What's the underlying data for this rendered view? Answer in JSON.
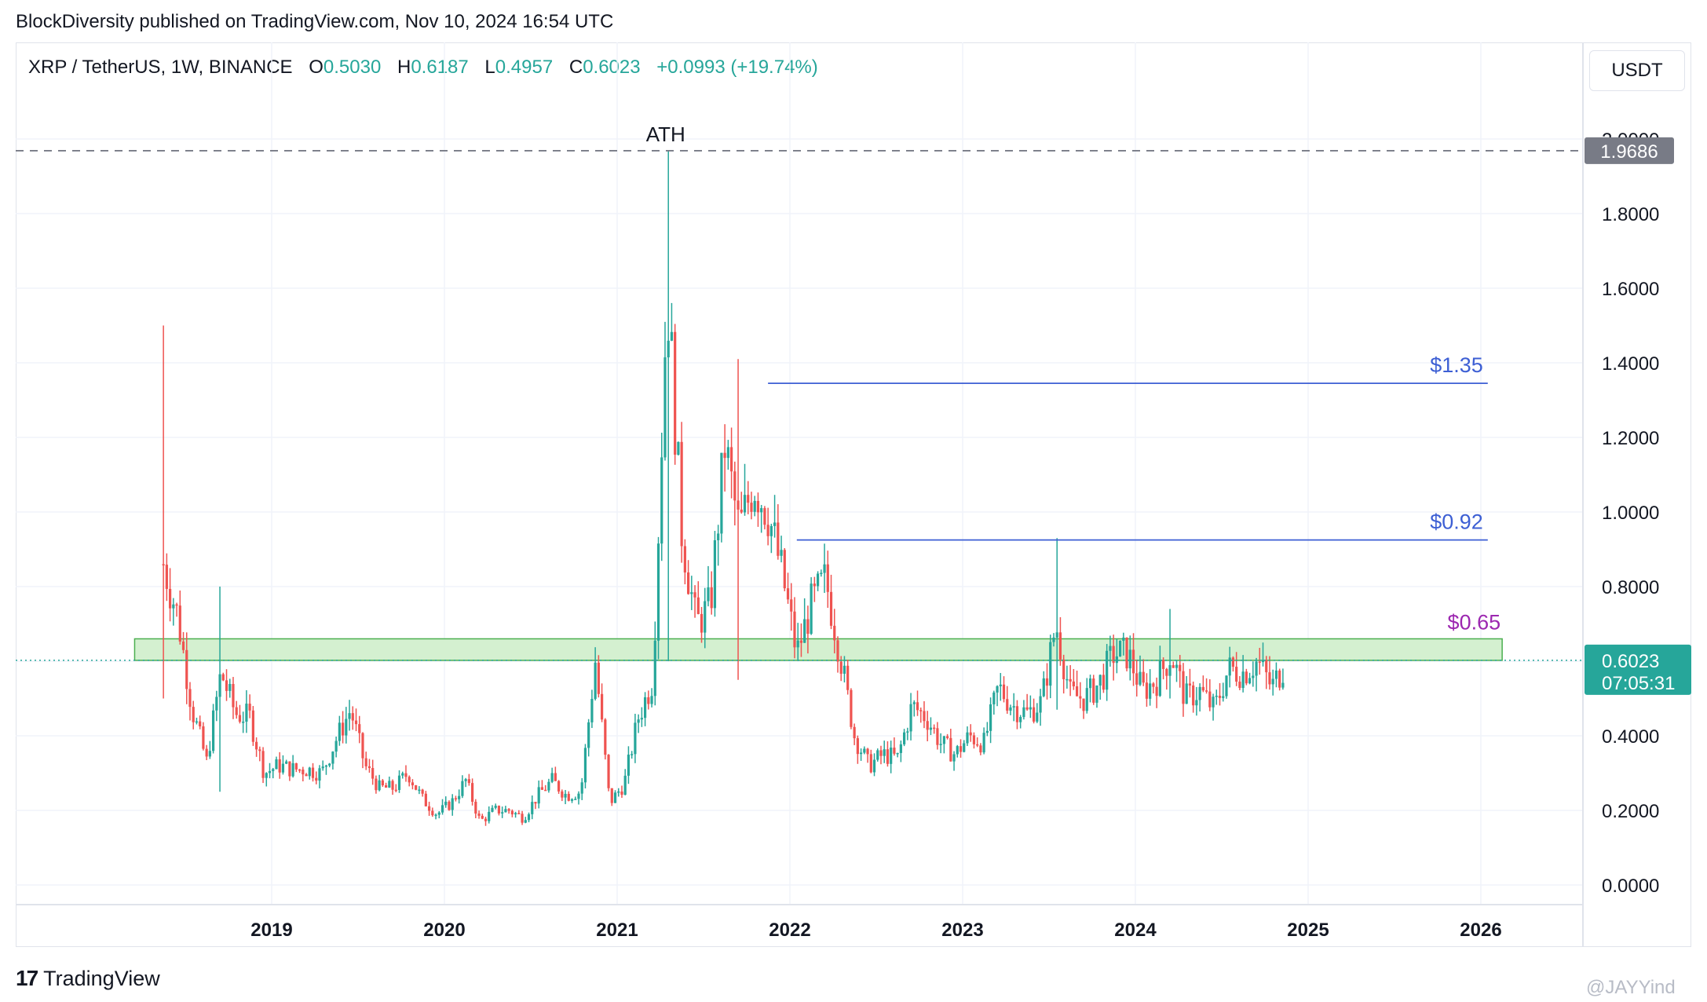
{
  "header": {
    "publisher_line": "BlockDiversity published on TradingView.com, Nov 10, 2024 16:54 UTC"
  },
  "legend": {
    "symbol": "XRP / TetherUS, 1W, BINANCE",
    "o_label": "O",
    "o_value": "0.5030",
    "h_label": "H",
    "h_value": "0.6187",
    "l_label": "L",
    "l_value": "0.4957",
    "c_label": "C",
    "c_value": "0.6023",
    "change": "+0.0993 (+19.74%)"
  },
  "currency_button": "USDT",
  "footer": {
    "brand": "TradingView",
    "watermark": "@JAYYind"
  },
  "colors": {
    "up": "#26a69a",
    "down": "#ef5350",
    "resistance": "#3d5fd4",
    "support_label": "#9c27b0",
    "zone_fill": "#d4f0d0",
    "zone_stroke": "#4caf50"
  },
  "chart_data": {
    "type": "candlestick",
    "symbol": "XRP / TetherUS",
    "interval": "1W",
    "exchange": "BINANCE",
    "ylim": [
      0,
      2.0
    ],
    "yticks": [
      "0.0000",
      "0.2000",
      "0.4000",
      "0.6000",
      "0.8000",
      "1.0000",
      "1.2000",
      "1.4000",
      "1.6000",
      "1.8000",
      "2.0000"
    ],
    "xticks": [
      "2019",
      "2020",
      "2021",
      "2022",
      "2023",
      "2024",
      "2025",
      "2026"
    ],
    "grid": true,
    "series": [
      {
        "x": "2018-05",
        "y": 0.86
      },
      {
        "x": "2018-06",
        "y": 0.72
      },
      {
        "x": "2018-07",
        "y": 0.47
      },
      {
        "x": "2018-08",
        "y": 0.33
      },
      {
        "x": "2018-09",
        "y": 0.57
      },
      {
        "x": "2018-10",
        "y": 0.46
      },
      {
        "x": "2018-11",
        "y": 0.45
      },
      {
        "x": "2018-12",
        "y": 0.3
      },
      {
        "x": "2019-01",
        "y": 0.32
      },
      {
        "x": "2019-02",
        "y": 0.31
      },
      {
        "x": "2019-03",
        "y": 0.31
      },
      {
        "x": "2019-04",
        "y": 0.3
      },
      {
        "x": "2019-05",
        "y": 0.39
      },
      {
        "x": "2019-06",
        "y": 0.47
      },
      {
        "x": "2019-07",
        "y": 0.32
      },
      {
        "x": "2019-08",
        "y": 0.26
      },
      {
        "x": "2019-09",
        "y": 0.26
      },
      {
        "x": "2019-10",
        "y": 0.3
      },
      {
        "x": "2019-11",
        "y": 0.23
      },
      {
        "x": "2019-12",
        "y": 0.19
      },
      {
        "x": "2020-01",
        "y": 0.22
      },
      {
        "x": "2020-02",
        "y": 0.28
      },
      {
        "x": "2020-03",
        "y": 0.17
      },
      {
        "x": "2020-04",
        "y": 0.2
      },
      {
        "x": "2020-05",
        "y": 0.2
      },
      {
        "x": "2020-06",
        "y": 0.18
      },
      {
        "x": "2020-07",
        "y": 0.24
      },
      {
        "x": "2020-08",
        "y": 0.28
      },
      {
        "x": "2020-09",
        "y": 0.24
      },
      {
        "x": "2020-10",
        "y": 0.25
      },
      {
        "x": "2020-11",
        "y": 0.6
      },
      {
        "x": "2020-12",
        "y": 0.22
      },
      {
        "x": "2021-01",
        "y": 0.27
      },
      {
        "x": "2021-02",
        "y": 0.45
      },
      {
        "x": "2021-03",
        "y": 0.55
      },
      {
        "x": "2021-04",
        "y": 1.6
      },
      {
        "x": "2021-05",
        "y": 0.95
      },
      {
        "x": "2021-06",
        "y": 0.7
      },
      {
        "x": "2021-07",
        "y": 0.75
      },
      {
        "x": "2021-08",
        "y": 1.18
      },
      {
        "x": "2021-09",
        "y": 0.95
      },
      {
        "x": "2021-10",
        "y": 1.08
      },
      {
        "x": "2021-11",
        "y": 1.0
      },
      {
        "x": "2021-12",
        "y": 0.83
      },
      {
        "x": "2022-01",
        "y": 0.62
      },
      {
        "x": "2022-02",
        "y": 0.75
      },
      {
        "x": "2022-03",
        "y": 0.82
      },
      {
        "x": "2022-04",
        "y": 0.62
      },
      {
        "x": "2022-05",
        "y": 0.4
      },
      {
        "x": "2022-06",
        "y": 0.32
      },
      {
        "x": "2022-07",
        "y": 0.35
      },
      {
        "x": "2022-08",
        "y": 0.34
      },
      {
        "x": "2022-09",
        "y": 0.48
      },
      {
        "x": "2022-10",
        "y": 0.45
      },
      {
        "x": "2022-11",
        "y": 0.38
      },
      {
        "x": "2022-12",
        "y": 0.35
      },
      {
        "x": "2023-01",
        "y": 0.4
      },
      {
        "x": "2023-02",
        "y": 0.38
      },
      {
        "x": "2023-03",
        "y": 0.53
      },
      {
        "x": "2023-04",
        "y": 0.48
      },
      {
        "x": "2023-05",
        "y": 0.46
      },
      {
        "x": "2023-06",
        "y": 0.49
      },
      {
        "x": "2023-07",
        "y": 0.7
      },
      {
        "x": "2023-08",
        "y": 0.51
      },
      {
        "x": "2023-09",
        "y": 0.5
      },
      {
        "x": "2023-10",
        "y": 0.54
      },
      {
        "x": "2023-11",
        "y": 0.62
      },
      {
        "x": "2023-12",
        "y": 0.62
      },
      {
        "x": "2024-01",
        "y": 0.52
      },
      {
        "x": "2024-02",
        "y": 0.55
      },
      {
        "x": "2024-03",
        "y": 0.62
      },
      {
        "x": "2024-04",
        "y": 0.5
      },
      {
        "x": "2024-05",
        "y": 0.52
      },
      {
        "x": "2024-06",
        "y": 0.47
      },
      {
        "x": "2024-07",
        "y": 0.58
      },
      {
        "x": "2024-08",
        "y": 0.57
      },
      {
        "x": "2024-09",
        "y": 0.6
      },
      {
        "x": "2024-10",
        "y": 0.53
      },
      {
        "x": "2024-11",
        "y": 0.6
      }
    ],
    "spikes": [
      {
        "x": "2018-05",
        "high": 1.5,
        "low": 0.5
      },
      {
        "x": "2018-09",
        "high": 0.8,
        "low": 0.25
      },
      {
        "x": "2021-04",
        "high": 1.9686,
        "low": 0.6
      },
      {
        "x": "2021-09",
        "high": 1.41,
        "low": 0.55
      },
      {
        "x": "2023-07",
        "high": 0.93,
        "low": 0.47
      },
      {
        "x": "2024-03",
        "high": 0.74,
        "low": 0.5
      }
    ],
    "annotations": [
      {
        "text": "ATH",
        "price": 1.9686,
        "x": "2021-04"
      },
      {
        "text": "$1.35",
        "price": 1.345,
        "from": "2021-11",
        "to": "2026-01"
      },
      {
        "text": "$0.92",
        "price": 0.925,
        "from": "2022-01",
        "to": "2026-01"
      },
      {
        "text": "$0.65",
        "zone_low": 0.6023,
        "zone_high": 0.66,
        "from": "2018-03",
        "to": "2026-02"
      }
    ],
    "ath_line": {
      "price": 1.9686,
      "label": "1.9686"
    },
    "last_price": {
      "price": 0.6023,
      "label": "0.6023",
      "countdown": "07:05:31"
    }
  }
}
